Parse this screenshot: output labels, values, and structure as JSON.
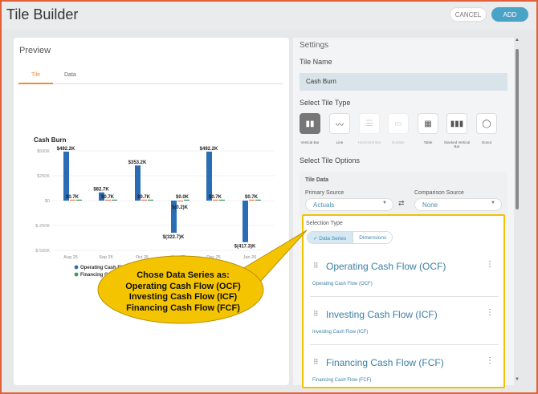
{
  "header": {
    "title": "Tile Builder",
    "cancel": "CANCEL",
    "add": "ADD"
  },
  "preview": {
    "title": "Preview",
    "tabs": [
      "Tile",
      "Data"
    ],
    "active_tab": "Tile"
  },
  "chart_data": {
    "type": "bar",
    "title": "Cash Burn",
    "categories": [
      "Aug 25",
      "Sep 25",
      "Oct 25",
      "Nov 25",
      "Dec 25",
      "Jan 26"
    ],
    "yticks": [
      "$500K",
      "$250K",
      "$0",
      "$-250K",
      "$-500K"
    ],
    "ylim": [
      -500,
      500
    ],
    "units": "K",
    "series": [
      {
        "name": "Operating Cash Flow (OCF)",
        "color": "#2a6db5",
        "values": [
          492.2,
          82.7,
          353.2,
          -322.7,
          492.2,
          -417.3
        ],
        "labels": [
          "$492.2K",
          "$82.7K",
          "$353.2K",
          "$(322.7)K",
          "$492.2K",
          "$(417.3)K"
        ]
      },
      {
        "name": "Investing Cash Flow (ICF)",
        "color": "#f07b4a",
        "values": [
          0.7,
          0.7,
          0.7,
          -0.2,
          0.7,
          0.7
        ],
        "labels": [
          "$0.7K",
          "$0.7K",
          "$0.7K",
          "$(0.2)K",
          "$0.7K",
          "$0.7K"
        ]
      },
      {
        "name": "Financing Cash Flow (FCF)",
        "color": "#3a9a5c",
        "values": [
          0,
          0,
          0,
          0,
          0,
          0
        ],
        "labels": [
          "",
          "",
          "",
          "$0.0K",
          "",
          ""
        ]
      }
    ]
  },
  "settings": {
    "title": "Settings",
    "tile_name_label": "Tile Name",
    "tile_name_value": "Cash Burn",
    "tile_type_label": "Select Tile Type",
    "tile_types": [
      {
        "label": "Vertical Bar",
        "icon": "vertical-bar-icon",
        "glyph": "▮▮"
      },
      {
        "label": "Line",
        "icon": "line-chart-icon",
        "glyph": "〰"
      },
      {
        "label": "Horizontal Bar",
        "icon": "horizontal-bar-icon",
        "glyph": "☰"
      },
      {
        "label": "Number",
        "icon": "number-icon",
        "glyph": "▭"
      },
      {
        "label": "Table",
        "icon": "table-icon",
        "glyph": "▦"
      },
      {
        "label": "Stacked Vertical Bar",
        "icon": "stacked-bar-icon",
        "glyph": "▮▮▮"
      },
      {
        "label": "Donut",
        "icon": "donut-icon",
        "glyph": "◯"
      }
    ],
    "selected_type": "Vertical Bar",
    "options_label": "Select Tile Options",
    "tile_data_label": "Tile Data",
    "primary_source_label": "Primary Source",
    "primary_source": "Actuals",
    "comparison_source_label": "Comparison Source",
    "comparison_source": "None",
    "selection_type_label": "Selection Type",
    "selection_types": [
      "Data Series",
      "Dimensions"
    ],
    "selected_selection_type": "Data Series",
    "series_items": [
      {
        "name": "Operating Cash Flow (OCF)",
        "sub": "Operating Cash Flow (OCF)"
      },
      {
        "name": "Investing Cash Flow (ICF)",
        "sub": "Investing Cash Flow (ICF)"
      },
      {
        "name": "Financing Cash Flow (FCF)",
        "sub": "Financing Cash Flow (FCF)"
      }
    ]
  },
  "callout": {
    "lines": [
      "Chose Data Series as:",
      "Operating Cash Flow (OCF)",
      "Investing Cash Flow (ICF)",
      "Financing Cash Flow (FCF)"
    ]
  }
}
